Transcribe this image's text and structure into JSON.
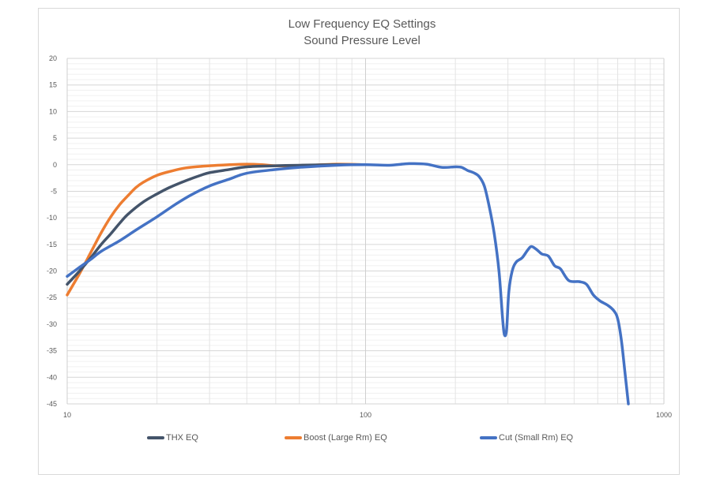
{
  "chart_data": {
    "type": "line",
    "title": "Low Frequency EQ Settings",
    "subtitle": "Sound Pressure Level",
    "xlabel": "",
    "ylabel": "",
    "x_scale": "log",
    "xlim": [
      10,
      1000
    ],
    "ylim": [
      -45,
      20
    ],
    "y_ticks": [
      20,
      15,
      10,
      5,
      0,
      -5,
      -10,
      -15,
      -20,
      -25,
      -30,
      -35,
      -40,
      -45
    ],
    "x_tick_labels": [
      {
        "value": 10,
        "label": "10"
      },
      {
        "value": 100,
        "label": "100"
      },
      {
        "value": 1000,
        "label": "1000"
      }
    ],
    "grid": true,
    "legend_position": "bottom",
    "series": [
      {
        "name": "THX EQ",
        "color": "#44546a",
        "points": [
          [
            10,
            -22.5
          ],
          [
            11,
            -20
          ],
          [
            12,
            -17.5
          ],
          [
            13,
            -15
          ],
          [
            14,
            -13
          ],
          [
            15,
            -11
          ],
          [
            16,
            -9.3
          ],
          [
            18,
            -7
          ],
          [
            20,
            -5.5
          ],
          [
            22,
            -4.3
          ],
          [
            25,
            -3
          ],
          [
            28,
            -2
          ],
          [
            30,
            -1.5
          ],
          [
            35,
            -0.9
          ],
          [
            40,
            -0.4
          ],
          [
            50,
            -0.2
          ],
          [
            60,
            -0.1
          ],
          [
            80,
            0
          ],
          [
            100,
            0
          ]
        ]
      },
      {
        "name": "Boost (Large Rm) EQ",
        "color": "#ed7d31",
        "points": [
          [
            10,
            -24.5
          ],
          [
            11,
            -20.5
          ],
          [
            12,
            -16.5
          ],
          [
            13,
            -12.8
          ],
          [
            14,
            -9.8
          ],
          [
            15,
            -7.5
          ],
          [
            16,
            -5.8
          ],
          [
            17,
            -4.3
          ],
          [
            18,
            -3.3
          ],
          [
            20,
            -2
          ],
          [
            22,
            -1.3
          ],
          [
            25,
            -0.6
          ],
          [
            30,
            -0.2
          ],
          [
            35,
            0
          ],
          [
            40,
            0.1
          ],
          [
            45,
            0
          ],
          [
            50,
            -0.2
          ],
          [
            60,
            -0.2
          ],
          [
            80,
            0.1
          ],
          [
            100,
            0
          ]
        ]
      },
      {
        "name": "Cut (Small Rm) EQ",
        "color": "#4472c4",
        "points": [
          [
            10,
            -21
          ],
          [
            11,
            -19.3
          ],
          [
            12,
            -17.8
          ],
          [
            13,
            -16.3
          ],
          [
            15,
            -14.3
          ],
          [
            17,
            -12.3
          ],
          [
            20,
            -9.8
          ],
          [
            23,
            -7.5
          ],
          [
            26,
            -5.7
          ],
          [
            30,
            -4
          ],
          [
            35,
            -2.7
          ],
          [
            40,
            -1.6
          ],
          [
            50,
            -0.9
          ],
          [
            60,
            -0.5
          ],
          [
            80,
            -0.1
          ],
          [
            100,
            0
          ],
          [
            120,
            -0.1
          ],
          [
            140,
            0.2
          ],
          [
            160,
            0.1
          ],
          [
            180,
            -0.5
          ],
          [
            200,
            -0.4
          ],
          [
            210,
            -0.5
          ],
          [
            220,
            -1.1
          ],
          [
            230,
            -1.5
          ],
          [
            240,
            -2.2
          ],
          [
            250,
            -4
          ],
          [
            260,
            -8
          ],
          [
            270,
            -13
          ],
          [
            280,
            -20
          ],
          [
            288,
            -29
          ],
          [
            292,
            -32
          ],
          [
            297,
            -31
          ],
          [
            302,
            -24
          ],
          [
            310,
            -20
          ],
          [
            320,
            -18.3
          ],
          [
            335,
            -17.5
          ],
          [
            350,
            -16
          ],
          [
            360,
            -15.4
          ],
          [
            375,
            -16
          ],
          [
            390,
            -16.8
          ],
          [
            410,
            -17.2
          ],
          [
            430,
            -19
          ],
          [
            450,
            -19.6
          ],
          [
            480,
            -21.8
          ],
          [
            520,
            -22
          ],
          [
            550,
            -22.5
          ],
          [
            580,
            -24.5
          ],
          [
            610,
            -25.6
          ],
          [
            650,
            -26.5
          ],
          [
            680,
            -27.5
          ],
          [
            700,
            -29
          ],
          [
            720,
            -33
          ],
          [
            740,
            -39
          ],
          [
            760,
            -45
          ]
        ]
      }
    ]
  }
}
